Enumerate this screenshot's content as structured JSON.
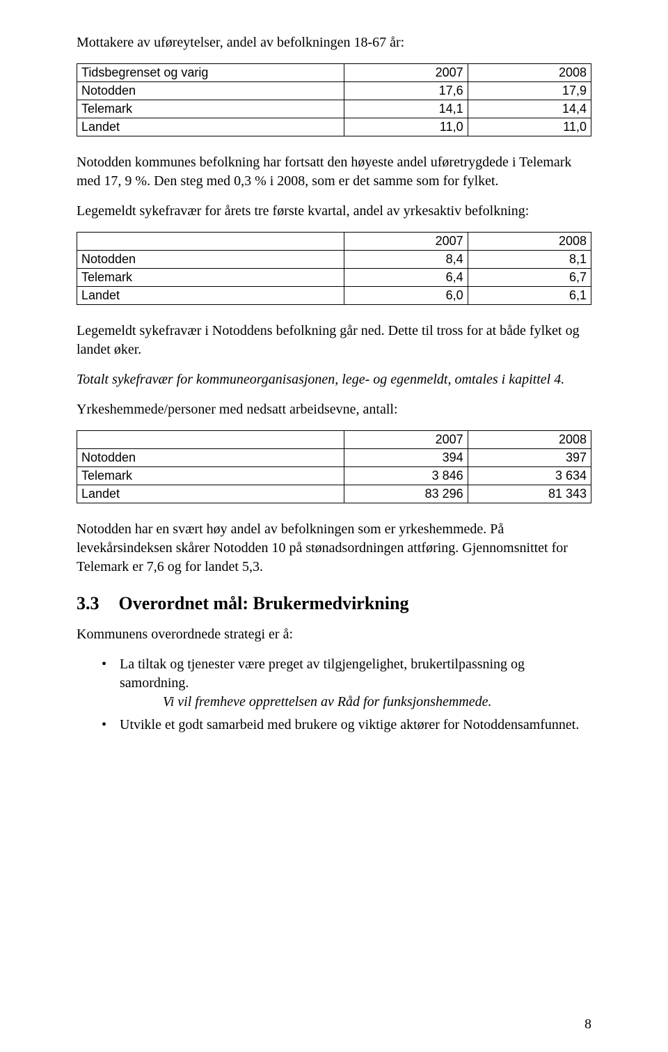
{
  "intro_para1": "Mottakere av uføreytelser, andel av befolkningen 18-67 år:",
  "table1": {
    "header_col1": "Tidsbegrenset og varig",
    "header_col2": "2007",
    "header_col3": "2008",
    "rows": [
      {
        "label": "Notodden",
        "a": "17,6",
        "b": "17,9"
      },
      {
        "label": "Telemark",
        "a": "14,1",
        "b": "14,4"
      },
      {
        "label": "Landet",
        "a": "11,0",
        "b": "11,0"
      }
    ]
  },
  "para2": "Notodden kommunes befolkning har fortsatt den høyeste andel uføretrygdede i Telemark med 17, 9 %. Den steg med 0,3 % i 2008, som er det samme som for fylket.",
  "para3": "Legemeldt sykefravær for årets tre første kvartal, andel av yrkesaktiv befolkning:",
  "table2": {
    "header_col1": "",
    "header_col2": "2007",
    "header_col3": "2008",
    "rows": [
      {
        "label": "Notodden",
        "a": "8,4",
        "b": "8,1"
      },
      {
        "label": "Telemark",
        "a": "6,4",
        "b": "6,7"
      },
      {
        "label": "Landet",
        "a": "6,0",
        "b": "6,1"
      }
    ]
  },
  "para4": "Legemeldt sykefravær i Notoddens befolkning går ned. Dette til tross for at både fylket og landet øker.",
  "para5_ital": "Totalt sykefravær for kommuneorganisasjonen, lege- og egenmeldt, omtales i kapittel 4.",
  "para6": "Yrkeshemmede/personer med nedsatt arbeidsevne, antall:",
  "table3": {
    "header_col1": "",
    "header_col2": "2007",
    "header_col3": "2008",
    "rows": [
      {
        "label": "Notodden",
        "a": "394",
        "b": "397"
      },
      {
        "label": "Telemark",
        "a": "3 846",
        "b": "3 634"
      },
      {
        "label": "Landet",
        "a": "83 296",
        "b": "81 343"
      }
    ]
  },
  "para7": "Notodden har en svært høy andel av befolkningen som er yrkeshemmede. På levekårsindeksen skårer Notodden 10 på stønadsordningen attføring. Gjennomsnittet for Telemark er 7,6 og for landet 5,3.",
  "section": {
    "number": "3.3",
    "title": "Overordnet mål: Brukermedvirkning"
  },
  "strategy_lead": "Kommunens overordnede strategi er å:",
  "bullets": [
    {
      "text": "La tiltak og tjenester være preget av tilgjengelighet, brukertilpassning og samordning.",
      "sub_italic": "Vi vil fremheve opprettelsen av Råd for funksjonshemmede."
    },
    {
      "text": "Utvikle et godt samarbeid med brukere og viktige aktører for Notoddensamfunnet."
    }
  ],
  "page_number": "8"
}
